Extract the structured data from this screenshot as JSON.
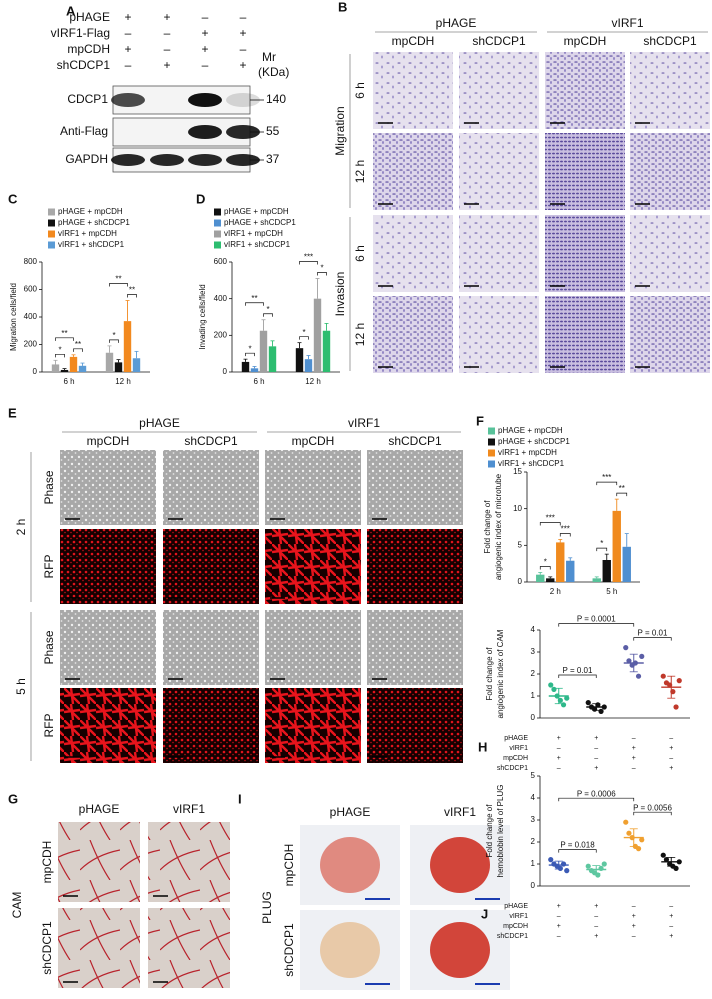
{
  "panel_a": {
    "letter": "A",
    "conditions": [
      {
        "name": "pHAGE",
        "signs": [
          "+",
          "+",
          "–",
          "–"
        ]
      },
      {
        "name": "vIRF1-Flag",
        "signs": [
          "–",
          "–",
          "+",
          "+"
        ]
      },
      {
        "name": "mpCDH",
        "signs": [
          "+",
          "–",
          "+",
          "–"
        ]
      },
      {
        "name": "shCDCP1",
        "signs": [
          "–",
          "+",
          "–",
          "+"
        ]
      }
    ],
    "mr_label": [
      "Mr",
      "(KDa)"
    ],
    "blots": [
      {
        "name": "CDCP1",
        "mr": 140
      },
      {
        "name": "Anti-Flag",
        "mr": 55
      },
      {
        "name": "GAPDH",
        "mr": 37
      }
    ]
  },
  "panel_b": {
    "letter": "B",
    "groups": [
      "pHAGE",
      "vIRF1"
    ],
    "columns": [
      "mpCDH",
      "shCDCP1",
      "mpCDH",
      "shCDCP1"
    ],
    "sections": [
      {
        "name": "Migration",
        "rows": [
          "6 h",
          "12 h"
        ]
      },
      {
        "name": "Invasion",
        "rows": [
          "6 h",
          "12 h"
        ]
      }
    ]
  },
  "panel_e": {
    "letter": "E",
    "groups": [
      "pHAGE",
      "vIRF1"
    ],
    "columns": [
      "mpCDH",
      "shCDCP1",
      "mpCDH",
      "shCDCP1"
    ],
    "sections": [
      {
        "name": "2 h",
        "rows": [
          "Phase",
          "RFP"
        ]
      },
      {
        "name": "5 h",
        "rows": [
          "Phase",
          "RFP"
        ]
      }
    ]
  },
  "panel_g": {
    "letter": "G",
    "label": "CAM",
    "columns": [
      "pHAGE",
      "vIRF1"
    ],
    "rows": [
      "mpCDH",
      "shCDCP1"
    ]
  },
  "panel_i": {
    "letter": "I",
    "label": "PLUG",
    "columns": [
      "pHAGE",
      "vIRF1"
    ],
    "rows": [
      "mpCDH",
      "shCDCP1"
    ]
  },
  "chart_data": [
    {
      "type": "bar",
      "letter": "C",
      "ylabel": [
        "Migration cells/field"
      ],
      "categories": [
        "6 h",
        "12 h"
      ],
      "series": [
        {
          "name": "pHAGE + mpCDH",
          "color": "#a8a8a8",
          "values": [
            55,
            140
          ],
          "errors": [
            30,
            50
          ]
        },
        {
          "name": "pHAGE + shCDCP1",
          "color": "#111111",
          "values": [
            15,
            70
          ],
          "errors": [
            10,
            20
          ]
        },
        {
          "name": "vIRF1 + mpCDH",
          "color": "#f2891f",
          "values": [
            110,
            370
          ],
          "errors": [
            15,
            150
          ]
        },
        {
          "name": "vIRF1 + shCDCP1",
          "color": "#5b9bd5",
          "values": [
            45,
            100
          ],
          "errors": [
            20,
            50
          ]
        }
      ],
      "significance": [
        [
          "*",
          "**",
          "**"
        ],
        [
          "*",
          "**",
          "**"
        ]
      ],
      "ylim": [
        0,
        800
      ],
      "yticks": [
        0,
        200,
        400,
        600,
        800
      ]
    },
    {
      "type": "bar",
      "letter": "D",
      "ylabel": [
        "Invading cells/field"
      ],
      "categories": [
        "6 h",
        "12 h"
      ],
      "series": [
        {
          "name": "pHAGE + mpCDH",
          "color": "#111111",
          "values": [
            55,
            130
          ],
          "errors": [
            15,
            30
          ]
        },
        {
          "name": "pHAGE + shCDCP1",
          "color": "#4f8fd0",
          "values": [
            20,
            70
          ],
          "errors": [
            10,
            20
          ]
        },
        {
          "name": "vIRF1 + mpCDH",
          "color": "#a0a0a0",
          "values": [
            225,
            400
          ],
          "errors": [
            60,
            110
          ]
        },
        {
          "name": "vIRF1 + shCDCP1",
          "color": "#2dbd70",
          "values": [
            140,
            225
          ],
          "errors": [
            30,
            40
          ]
        }
      ],
      "significance": [
        [
          "*",
          "**",
          "*"
        ],
        [
          "*",
          "***",
          "*"
        ]
      ],
      "ylim": [
        0,
        600
      ],
      "yticks": [
        0,
        200,
        400,
        600
      ]
    },
    {
      "type": "bar",
      "letter": "F",
      "ylabel": [
        "Fold change of",
        "angiogenic index of microtube"
      ],
      "categories": [
        "2 h",
        "5 h"
      ],
      "series": [
        {
          "name": "pHAGE + mpCDH",
          "color": "#58c29a",
          "values": [
            1,
            0.5
          ],
          "errors": [
            0.3,
            0.2
          ]
        },
        {
          "name": "pHAGE + shCDCP1",
          "color": "#111111",
          "values": [
            0.5,
            3
          ],
          "errors": [
            0.2,
            0.8
          ]
        },
        {
          "name": "vIRF1 + mpCDH",
          "color": "#f08a1e",
          "values": [
            5.4,
            9.7
          ],
          "errors": [
            0.4,
            1.6
          ]
        },
        {
          "name": "vIRF1 + shCDCP1",
          "color": "#4f8fd0",
          "values": [
            2.9,
            4.8
          ],
          "errors": [
            0.4,
            1.8
          ]
        }
      ],
      "significance": [
        [
          "*",
          "***",
          "***"
        ],
        [
          "*",
          "***",
          "**"
        ]
      ],
      "ylim": [
        0,
        15
      ],
      "yticks": [
        0,
        5,
        10,
        15
      ]
    },
    {
      "type": "dot",
      "letter": "H",
      "ylabel": [
        "Fold change of",
        "angiogenic index of CAM"
      ],
      "groups": [
        {
          "color": "#2eb88a",
          "values": [
            1.5,
            1.3,
            1,
            0.8,
            0.6,
            0.9
          ],
          "mean": 1,
          "sd": 0.35
        },
        {
          "color": "#111111",
          "values": [
            0.7,
            0.5,
            0.4,
            0.6,
            0.3,
            0.5
          ],
          "mean": 0.5,
          "sd": 0.15
        },
        {
          "color": "#5b5ea6",
          "values": [
            3.2,
            2.6,
            2.4,
            2.5,
            1.9,
            2.8
          ],
          "mean": 2.5,
          "sd": 0.4
        },
        {
          "color": "#c0392b",
          "values": [
            1.9,
            1.6,
            1.5,
            1.2,
            0.5,
            1.7
          ],
          "mean": 1.4,
          "sd": 0.5
        }
      ],
      "conditions": [
        {
          "name": "pHAGE",
          "signs": [
            "+",
            "+",
            "–",
            "–"
          ]
        },
        {
          "name": "vIRF1",
          "signs": [
            "–",
            "–",
            "+",
            "+"
          ]
        },
        {
          "name": "mpCDH",
          "signs": [
            "+",
            "–",
            "+",
            "–"
          ]
        },
        {
          "name": "shCDCP1",
          "signs": [
            "–",
            "+",
            "–",
            "+"
          ]
        }
      ],
      "p_values": [
        "P = 0.01",
        "P = 0.0001",
        "P = 0.01"
      ],
      "ylim": [
        0,
        4
      ],
      "yticks": [
        0,
        1,
        2,
        3,
        4
      ]
    },
    {
      "type": "dot",
      "letter": "J",
      "ylabel": [
        "Fold change of",
        "hemoblobin level of PLUG"
      ],
      "groups": [
        {
          "color": "#3b5ab5",
          "values": [
            1.2,
            1,
            0.9,
            0.8,
            1,
            0.7
          ],
          "mean": 0.95,
          "sd": 0.18
        },
        {
          "color": "#5ec7a0",
          "values": [
            0.9,
            0.7,
            0.6,
            0.5,
            0.8,
            1
          ],
          "mean": 0.75,
          "sd": 0.18
        },
        {
          "color": "#f0a030",
          "values": [
            2.9,
            2.4,
            2.2,
            1.8,
            1.7,
            2.1
          ],
          "mean": 2.2,
          "sd": 0.4
        },
        {
          "color": "#111111",
          "values": [
            1.4,
            1.2,
            1,
            0.9,
            0.8,
            1.1
          ],
          "mean": 1.1,
          "sd": 0.2
        }
      ],
      "conditions": [
        {
          "name": "pHAGE",
          "signs": [
            "+",
            "+",
            "–",
            "–"
          ]
        },
        {
          "name": "vIRF1",
          "signs": [
            "–",
            "–",
            "+",
            "+"
          ]
        },
        {
          "name": "mpCDH",
          "signs": [
            "+",
            "–",
            "+",
            "–"
          ]
        },
        {
          "name": "shCDCP1",
          "signs": [
            "–",
            "+",
            "–",
            "+"
          ]
        }
      ],
      "p_values": [
        "P = 0.018",
        "P = 0.0006",
        "P = 0.0056"
      ],
      "ylim": [
        0,
        5
      ],
      "yticks": [
        0,
        1,
        2,
        3,
        4,
        5
      ]
    }
  ]
}
